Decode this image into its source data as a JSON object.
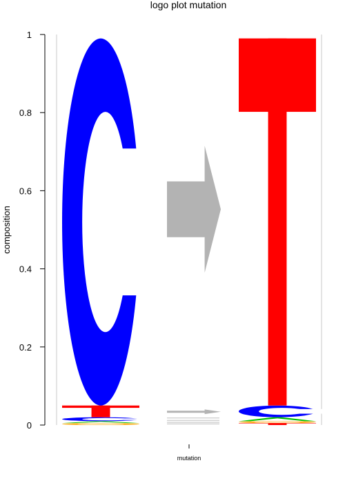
{
  "chart_data": {
    "type": "logo",
    "title": "logo plot mutation",
    "xlabel": "mutation",
    "ylabel": "composition",
    "ylim": [
      0,
      1
    ],
    "yticks": [
      {
        "value": 0,
        "label": "0"
      },
      {
        "value": 0.2,
        "label": "0.2"
      },
      {
        "value": 0.4,
        "label": "0.4"
      },
      {
        "value": 0.6,
        "label": "0.6"
      },
      {
        "value": 0.8,
        "label": "0.8"
      },
      {
        "value": 1,
        "label": "1"
      }
    ],
    "categories": [
      "mutation"
    ],
    "colors": {
      "C": "#0000ff",
      "T": "#ff0000",
      "A": "#00c000",
      "G": "#ffa500",
      "arrow": "#b3b3b3"
    },
    "from_stack": [
      {
        "letter": "C",
        "value": 0.94
      },
      {
        "letter": "T",
        "value": 0.03
      },
      {
        "letter": "C",
        "value": 0.01
      },
      {
        "letter": "A",
        "value": 0.005
      },
      {
        "letter": "G",
        "value": 0.005
      }
    ],
    "to_stack": [
      {
        "letter": "T",
        "value": 0.94
      },
      {
        "letter": "C",
        "value": 0.03
      },
      {
        "letter": "A",
        "value": 0.01
      },
      {
        "letter": "G",
        "value": 0.005
      },
      {
        "letter": "T",
        "value": 0.005
      }
    ],
    "arrows": [
      {
        "value": 0.45,
        "color": "#b3b3b3"
      },
      {
        "value": 0.01,
        "color": "#b3b3b3"
      }
    ]
  }
}
